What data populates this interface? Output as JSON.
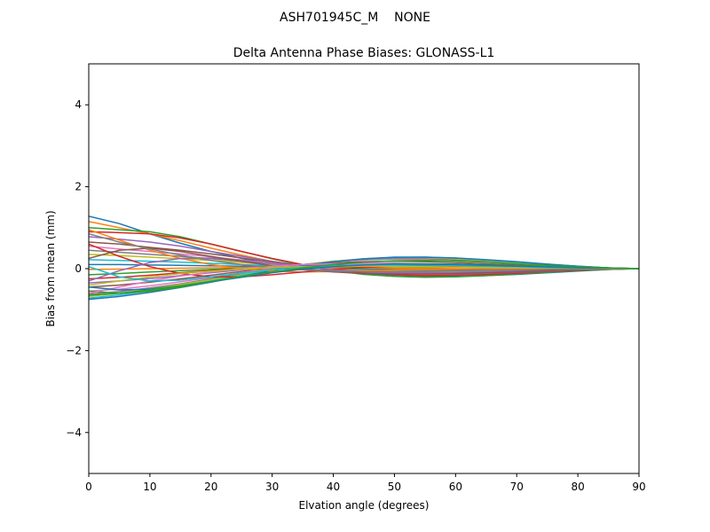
{
  "chart_data": {
    "type": "line",
    "suptitle": "ASH701945C_M    NONE",
    "title": "Delta Antenna Phase Biases: GLONASS-L1",
    "xlabel": "Elvation angle (degrees)",
    "ylabel": "Bias from mean (mm)",
    "xlim": [
      0,
      90
    ],
    "ylim": [
      -5,
      5
    ],
    "xticks": [
      0,
      10,
      20,
      30,
      40,
      50,
      60,
      70,
      80,
      90
    ],
    "yticks": [
      -4,
      -2,
      0,
      2,
      4
    ],
    "grid": false,
    "legend": "none",
    "x": [
      0,
      5,
      10,
      15,
      20,
      25,
      30,
      35,
      40,
      45,
      50,
      55,
      60,
      65,
      70,
      75,
      80,
      85,
      90
    ],
    "series": [
      {
        "color": "#1f77b4",
        "values": [
          1.28,
          1.1,
          0.85,
          0.62,
          0.42,
          0.25,
          0.1,
          0.0,
          -0.07,
          -0.12,
          -0.16,
          -0.18,
          -0.19,
          -0.17,
          -0.14,
          -0.1,
          -0.06,
          -0.02,
          0.0
        ]
      },
      {
        "color": "#ff7f0e",
        "values": [
          1.15,
          1.0,
          0.85,
          0.68,
          0.5,
          0.33,
          0.18,
          0.06,
          -0.04,
          -0.1,
          -0.14,
          -0.15,
          -0.15,
          -0.13,
          -0.1,
          -0.07,
          -0.04,
          -0.02,
          0.0
        ]
      },
      {
        "color": "#2ca02c",
        "values": [
          1.0,
          0.95,
          0.9,
          0.78,
          0.6,
          0.42,
          0.24,
          0.08,
          -0.05,
          -0.14,
          -0.19,
          -0.21,
          -0.2,
          -0.17,
          -0.13,
          -0.09,
          -0.05,
          -0.02,
          0.0
        ]
      },
      {
        "color": "#d62728",
        "values": [
          0.9,
          0.88,
          0.85,
          0.75,
          0.6,
          0.42,
          0.25,
          0.1,
          -0.02,
          -0.1,
          -0.15,
          -0.17,
          -0.16,
          -0.14,
          -0.11,
          -0.07,
          -0.04,
          -0.01,
          0.0
        ]
      },
      {
        "color": "#9467bd",
        "values": [
          0.78,
          0.72,
          0.65,
          0.55,
          0.42,
          0.3,
          0.18,
          0.07,
          -0.02,
          -0.08,
          -0.12,
          -0.13,
          -0.13,
          -0.11,
          -0.09,
          -0.06,
          -0.03,
          -0.01,
          0.0
        ]
      },
      {
        "color": "#8c564b",
        "values": [
          0.65,
          0.6,
          0.52,
          0.45,
          0.36,
          0.26,
          0.16,
          0.07,
          -0.01,
          -0.06,
          -0.09,
          -0.1,
          -0.1,
          -0.09,
          -0.07,
          -0.05,
          -0.03,
          -0.01,
          0.0
        ]
      },
      {
        "color": "#e377c2",
        "values": [
          0.55,
          0.48,
          0.42,
          0.36,
          0.29,
          0.21,
          0.13,
          0.05,
          -0.01,
          -0.05,
          -0.08,
          -0.09,
          -0.09,
          -0.08,
          -0.06,
          -0.04,
          -0.02,
          -0.01,
          0.0
        ]
      },
      {
        "color": "#7f7f7f",
        "values": [
          0.45,
          0.4,
          0.35,
          0.3,
          0.24,
          0.18,
          0.11,
          0.05,
          0.0,
          -0.04,
          -0.06,
          -0.07,
          -0.07,
          -0.06,
          -0.05,
          -0.03,
          -0.02,
          -0.01,
          0.0
        ]
      },
      {
        "color": "#bcbd22",
        "values": [
          0.35,
          0.32,
          0.28,
          0.24,
          0.2,
          0.15,
          0.09,
          0.04,
          0.0,
          -0.03,
          -0.05,
          -0.06,
          -0.06,
          -0.05,
          -0.04,
          -0.03,
          -0.02,
          -0.01,
          0.0
        ]
      },
      {
        "color": "#17becf",
        "values": [
          0.22,
          0.2,
          0.18,
          0.16,
          0.13,
          0.1,
          0.07,
          0.04,
          0.01,
          -0.01,
          -0.03,
          -0.04,
          -0.04,
          -0.04,
          -0.03,
          -0.02,
          -0.01,
          0.0,
          0.0
        ]
      },
      {
        "color": "#1f77b4",
        "values": [
          0.1,
          0.1,
          0.09,
          0.08,
          0.07,
          0.06,
          0.05,
          0.03,
          0.02,
          0.0,
          -0.01,
          -0.02,
          -0.02,
          -0.02,
          -0.02,
          -0.01,
          -0.01,
          0.0,
          0.0
        ]
      },
      {
        "color": "#ff7f0e",
        "values": [
          -0.02,
          -0.01,
          0.0,
          0.01,
          0.02,
          0.03,
          0.03,
          0.03,
          0.02,
          0.02,
          0.01,
          0.01,
          0.0,
          0.0,
          0.0,
          0.0,
          0.0,
          0.0,
          0.0
        ]
      },
      {
        "color": "#2ca02c",
        "values": [
          -0.15,
          -0.12,
          -0.08,
          -0.05,
          -0.02,
          0.01,
          0.03,
          0.04,
          0.05,
          0.05,
          0.05,
          0.04,
          0.04,
          0.03,
          0.02,
          0.02,
          0.01,
          0.0,
          0.0
        ]
      },
      {
        "color": "#d62728",
        "values": [
          -0.25,
          -0.21,
          -0.16,
          -0.1,
          -0.05,
          0.0,
          0.04,
          0.07,
          0.08,
          0.09,
          0.09,
          0.08,
          0.07,
          0.06,
          0.05,
          0.03,
          0.02,
          0.01,
          0.0
        ]
      },
      {
        "color": "#9467bd",
        "values": [
          -0.35,
          -0.3,
          -0.24,
          -0.17,
          -0.1,
          -0.03,
          0.03,
          0.08,
          0.11,
          0.13,
          0.13,
          0.12,
          0.11,
          0.09,
          0.07,
          0.05,
          0.03,
          0.01,
          0.0
        ]
      },
      {
        "color": "#8c564b",
        "values": [
          -0.45,
          -0.4,
          -0.33,
          -0.25,
          -0.16,
          -0.07,
          0.02,
          0.09,
          0.14,
          0.17,
          0.18,
          0.17,
          0.15,
          0.12,
          0.09,
          0.06,
          0.04,
          0.02,
          0.0
        ]
      },
      {
        "color": "#e377c2",
        "values": [
          -0.55,
          -0.5,
          -0.42,
          -0.32,
          -0.22,
          -0.1,
          0.01,
          0.1,
          0.17,
          0.21,
          0.23,
          0.22,
          0.19,
          0.16,
          0.12,
          0.08,
          0.05,
          0.02,
          0.0
        ]
      },
      {
        "color": "#7f7f7f",
        "values": [
          -0.62,
          -0.56,
          -0.47,
          -0.37,
          -0.25,
          -0.13,
          -0.01,
          0.1,
          0.18,
          0.23,
          0.25,
          0.25,
          0.22,
          0.18,
          0.14,
          0.09,
          0.05,
          0.02,
          0.0
        ]
      },
      {
        "color": "#bcbd22",
        "values": [
          -0.68,
          -0.6,
          -0.5,
          -0.39,
          -0.27,
          -0.15,
          -0.02,
          0.09,
          0.18,
          0.24,
          0.27,
          0.27,
          0.24,
          0.2,
          0.15,
          0.1,
          0.06,
          0.02,
          0.0
        ]
      },
      {
        "color": "#17becf",
        "values": [
          -0.72,
          -0.64,
          -0.54,
          -0.42,
          -0.3,
          -0.17,
          -0.04,
          0.08,
          0.17,
          0.24,
          0.27,
          0.28,
          0.26,
          0.21,
          0.16,
          0.11,
          0.06,
          0.02,
          0.0
        ]
      },
      {
        "color": "#1f77b4",
        "values": [
          -0.75,
          -0.68,
          -0.58,
          -0.46,
          -0.33,
          -0.19,
          -0.05,
          0.07,
          0.17,
          0.24,
          0.28,
          0.28,
          0.26,
          0.22,
          0.17,
          0.11,
          0.06,
          0.02,
          0.0
        ]
      },
      {
        "color": "#ff7f0e",
        "values": [
          0.95,
          0.7,
          0.45,
          0.25,
          0.1,
          0.0,
          -0.06,
          -0.08,
          -0.07,
          -0.05,
          -0.03,
          -0.02,
          -0.01,
          0.0,
          0.0,
          0.0,
          0.0,
          0.0,
          0.0
        ]
      },
      {
        "color": "#2ca02c",
        "values": [
          -0.55,
          -0.6,
          -0.55,
          -0.45,
          -0.32,
          -0.2,
          -0.09,
          0.0,
          0.06,
          0.1,
          0.12,
          0.12,
          0.11,
          0.09,
          0.07,
          0.05,
          0.03,
          0.01,
          0.0
        ]
      },
      {
        "color": "#d62728",
        "values": [
          0.6,
          0.3,
          0.05,
          -0.12,
          -0.2,
          -0.2,
          -0.15,
          -0.08,
          -0.02,
          0.03,
          0.06,
          0.07,
          0.07,
          0.06,
          0.05,
          0.03,
          0.02,
          0.01,
          0.0
        ]
      },
      {
        "color": "#9467bd",
        "values": [
          -0.3,
          -0.05,
          0.15,
          0.25,
          0.26,
          0.2,
          0.12,
          0.04,
          -0.03,
          -0.07,
          -0.09,
          -0.1,
          -0.09,
          -0.08,
          -0.06,
          -0.04,
          -0.02,
          -0.01,
          0.0
        ]
      },
      {
        "color": "#8c564b",
        "values": [
          0.25,
          0.45,
          0.5,
          0.42,
          0.3,
          0.18,
          0.07,
          -0.02,
          -0.08,
          -0.12,
          -0.13,
          -0.13,
          -0.12,
          -0.1,
          -0.08,
          -0.05,
          -0.03,
          -0.01,
          0.0
        ]
      },
      {
        "color": "#e377c2",
        "values": [
          -0.6,
          -0.45,
          -0.3,
          -0.18,
          -0.08,
          0.0,
          0.06,
          0.1,
          0.12,
          0.12,
          0.11,
          0.1,
          0.08,
          0.07,
          0.05,
          0.03,
          0.02,
          0.01,
          0.0
        ]
      },
      {
        "color": "#7f7f7f",
        "values": [
          0.85,
          0.65,
          0.48,
          0.33,
          0.2,
          0.1,
          0.02,
          -0.03,
          -0.06,
          -0.07,
          -0.07,
          -0.06,
          -0.05,
          -0.04,
          -0.03,
          -0.02,
          -0.01,
          0.0,
          0.0
        ]
      },
      {
        "color": "#bcbd22",
        "values": [
          -0.4,
          -0.3,
          -0.2,
          -0.12,
          -0.06,
          -0.01,
          0.03,
          0.05,
          0.06,
          0.06,
          0.06,
          0.05,
          0.04,
          0.03,
          0.02,
          0.02,
          0.01,
          0.0,
          0.0
        ]
      },
      {
        "color": "#17becf",
        "values": [
          0.05,
          -0.2,
          -0.3,
          -0.28,
          -0.2,
          -0.11,
          -0.03,
          0.03,
          0.07,
          0.09,
          0.09,
          0.09,
          0.08,
          0.06,
          0.05,
          0.03,
          0.02,
          0.01,
          0.0
        ]
      },
      {
        "color": "#1f77b4",
        "values": [
          -0.45,
          -0.52,
          -0.5,
          -0.42,
          -0.32,
          -0.21,
          -0.1,
          -0.01,
          0.05,
          0.09,
          0.11,
          0.11,
          0.1,
          0.08,
          0.06,
          0.04,
          0.02,
          0.01,
          0.0
        ]
      },
      {
        "color": "#2ca02c",
        "values": [
          -0.65,
          -0.6,
          -0.52,
          -0.42,
          -0.31,
          -0.19,
          -0.08,
          0.02,
          0.1,
          0.16,
          0.19,
          0.2,
          0.19,
          0.16,
          0.12,
          0.08,
          0.05,
          0.02,
          0.0
        ]
      }
    ]
  }
}
